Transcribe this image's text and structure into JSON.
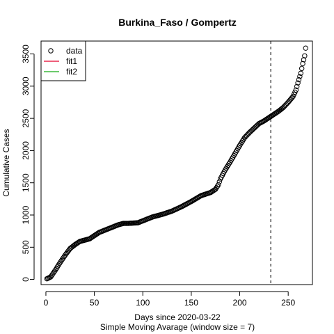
{
  "chart_data": {
    "type": "scatter",
    "title": "Burkina_Faso / Gompertz",
    "xlabel": "Days since 2020-03-22",
    "xlabel2": "Simple Moving Avarage (window size = 7)",
    "ylabel": "Cumulative Cases",
    "xlim": [
      -5,
      275
    ],
    "ylim": [
      -80,
      3700
    ],
    "x_ticks": [
      0,
      50,
      100,
      150,
      200,
      250
    ],
    "y_ticks": [
      0,
      500,
      1000,
      1500,
      2000,
      2500,
      3000,
      3500
    ],
    "x_tick_labels": [
      "0",
      "50",
      "100",
      "150",
      "200",
      "250"
    ],
    "y_tick_labels": [
      "0",
      "500",
      "1000",
      "1500",
      "2000",
      "2500",
      "3000",
      "3500"
    ],
    "vline_x": 232,
    "legend": {
      "position": "top-left",
      "items": [
        {
          "label": "data",
          "kind": "point",
          "color": "#000000"
        },
        {
          "label": "fit1",
          "kind": "line",
          "color": "#e8284f"
        },
        {
          "label": "fit2",
          "kind": "line",
          "color": "#3cb93c"
        }
      ]
    },
    "anchors": [
      [
        1,
        10
      ],
      [
        5,
        40
      ],
      [
        10,
        150
      ],
      [
        15,
        270
      ],
      [
        20,
        380
      ],
      [
        25,
        480
      ],
      [
        30,
        540
      ],
      [
        35,
        590
      ],
      [
        40,
        610
      ],
      [
        45,
        630
      ],
      [
        50,
        680
      ],
      [
        55,
        730
      ],
      [
        60,
        760
      ],
      [
        65,
        790
      ],
      [
        70,
        820
      ],
      [
        75,
        850
      ],
      [
        80,
        870
      ],
      [
        85,
        870
      ],
      [
        90,
        875
      ],
      [
        95,
        880
      ],
      [
        100,
        910
      ],
      [
        110,
        970
      ],
      [
        120,
        1010
      ],
      [
        130,
        1060
      ],
      [
        140,
        1130
      ],
      [
        150,
        1210
      ],
      [
        160,
        1300
      ],
      [
        170,
        1350
      ],
      [
        175,
        1400
      ],
      [
        178,
        1470
      ],
      [
        180,
        1560
      ],
      [
        185,
        1700
      ],
      [
        190,
        1820
      ],
      [
        195,
        1950
      ],
      [
        200,
        2080
      ],
      [
        205,
        2200
      ],
      [
        210,
        2280
      ],
      [
        215,
        2350
      ],
      [
        220,
        2420
      ],
      [
        225,
        2460
      ],
      [
        230,
        2510
      ],
      [
        235,
        2560
      ],
      [
        240,
        2610
      ],
      [
        245,
        2670
      ],
      [
        250,
        2750
      ],
      [
        255,
        2840
      ],
      [
        258,
        2940
      ],
      [
        260,
        3050
      ],
      [
        263,
        3200
      ],
      [
        265,
        3350
      ],
      [
        267,
        3470
      ],
      [
        268,
        3590
      ]
    ],
    "n_points": 268,
    "point_color": "#000000"
  }
}
